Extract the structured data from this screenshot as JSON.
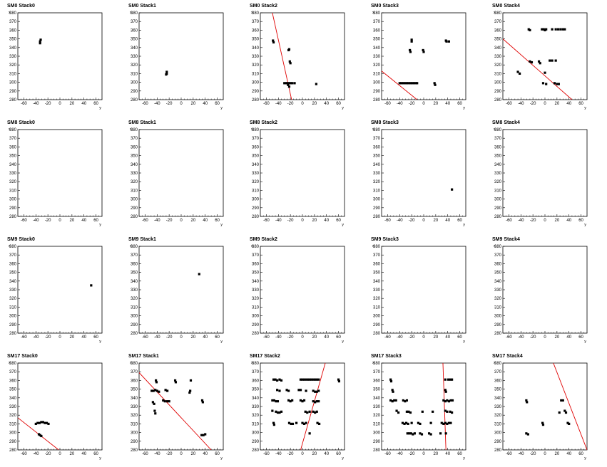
{
  "chart_data": {
    "type": "scatter",
    "xlabel": "y",
    "ylabel": "x",
    "xlim": [
      -70,
      70
    ],
    "ylim": [
      280,
      380
    ],
    "xticks": [
      -60,
      -40,
      -20,
      0,
      20,
      40,
      60
    ],
    "yticks": [
      280,
      290,
      300,
      310,
      320,
      330,
      340,
      350,
      360,
      370,
      380
    ],
    "xtick_labels": [
      "-60",
      "-40",
      "-20",
      "0",
      "20",
      "40",
      "60"
    ],
    "ytick_labels": [
      "280",
      "290",
      "300",
      "310",
      "320",
      "330",
      "340",
      "350",
      "360",
      "370",
      "380"
    ],
    "grid": false,
    "marker_color": "#000000",
    "fit_line_color": "#e00000",
    "panels": [
      {
        "title": "SM0 Stack0",
        "points": [
          [
            -33,
            345
          ],
          [
            -33,
            347
          ],
          [
            -32,
            349
          ]
        ],
        "line": null
      },
      {
        "title": "SM0 Stack1",
        "points": [
          [
            -25,
            309
          ],
          [
            -24,
            310
          ],
          [
            -24,
            312
          ]
        ],
        "line": null
      },
      {
        "title": "SM0 Stack2",
        "points": [
          [
            -49,
            348
          ],
          [
            -48,
            346
          ],
          [
            -23,
            337
          ],
          [
            -22,
            338
          ],
          [
            -21,
            324
          ],
          [
            -20,
            322
          ],
          [
            -30,
            299
          ],
          [
            -27,
            299
          ],
          [
            -25,
            299
          ],
          [
            -24,
            297
          ],
          [
            -22,
            299
          ],
          [
            -20,
            299
          ],
          [
            -17,
            299
          ],
          [
            -13,
            299
          ],
          [
            -22,
            295
          ],
          [
            23,
            298
          ]
        ],
        "line": [
          [
            -50,
            380
          ],
          [
            -18,
            280
          ]
        ]
      },
      {
        "title": "SM0 Stack3",
        "points": [
          [
            -20,
            349
          ],
          [
            -20,
            347
          ],
          [
            -23,
            337
          ],
          [
            -22,
            335
          ],
          [
            -1,
            337
          ],
          [
            0,
            335
          ],
          [
            -40,
            299
          ],
          [
            -37,
            299
          ],
          [
            -34,
            299
          ],
          [
            -31,
            299
          ],
          [
            -28,
            299
          ],
          [
            -25,
            299
          ],
          [
            -22,
            299
          ],
          [
            -19,
            299
          ],
          [
            -16,
            299
          ],
          [
            -13,
            299
          ],
          [
            -11,
            299
          ],
          [
            18,
            299
          ],
          [
            19,
            297
          ],
          [
            37,
            348
          ],
          [
            38,
            347
          ],
          [
            42,
            347
          ]
        ],
        "line": [
          [
            -70,
            313
          ],
          [
            -11,
            280
          ]
        ]
      },
      {
        "title": "SM0 Stack4",
        "points": [
          [
            -27,
            361
          ],
          [
            -25,
            360
          ],
          [
            -5,
            361
          ],
          [
            -2,
            361
          ],
          [
            0,
            360
          ],
          [
            2,
            361
          ],
          [
            12,
            361
          ],
          [
            18,
            361
          ],
          [
            22,
            361
          ],
          [
            26,
            361
          ],
          [
            30,
            361
          ],
          [
            33,
            361
          ],
          [
            -45,
            312
          ],
          [
            -42,
            310
          ],
          [
            -25,
            324
          ],
          [
            -22,
            323
          ],
          [
            -10,
            324
          ],
          [
            -8,
            322
          ],
          [
            8,
            325
          ],
          [
            12,
            325
          ],
          [
            18,
            325
          ],
          [
            0,
            311
          ],
          [
            -3,
            299
          ],
          [
            2,
            298
          ],
          [
            16,
            299
          ],
          [
            20,
            298
          ],
          [
            23,
            298
          ]
        ],
        "line": [
          [
            -70,
            350
          ],
          [
            45,
            280
          ]
        ]
      },
      {
        "title": "SM8 Stack0",
        "points": [],
        "line": null
      },
      {
        "title": "SM8 Stack1",
        "points": [],
        "line": null
      },
      {
        "title": "SM8 Stack2",
        "points": [],
        "line": null
      },
      {
        "title": "SM8 Stack3",
        "points": [
          [
            47,
            311
          ]
        ],
        "line": null
      },
      {
        "title": "SM8 Stack4",
        "points": [],
        "line": null
      },
      {
        "title": "SM9 Stack0",
        "points": [
          [
            52,
            335
          ]
        ],
        "line": null
      },
      {
        "title": "SM9 Stack1",
        "points": [
          [
            30,
            348
          ]
        ],
        "line": null
      },
      {
        "title": "SM9 Stack2",
        "points": [],
        "line": null
      },
      {
        "title": "SM9 Stack3",
        "points": [],
        "line": null
      },
      {
        "title": "SM9 Stack4",
        "points": [],
        "line": null
      },
      {
        "title": "SM17 Stack0",
        "points": [
          [
            -40,
            310
          ],
          [
            -37,
            311
          ],
          [
            -34,
            311
          ],
          [
            -31,
            312
          ],
          [
            -28,
            312
          ],
          [
            -25,
            311
          ],
          [
            -22,
            311
          ],
          [
            -19,
            310
          ],
          [
            -35,
            298
          ],
          [
            -33,
            297
          ],
          [
            -31,
            296
          ]
        ],
        "line": [
          [
            -70,
            317
          ],
          [
            -2,
            280
          ]
        ]
      },
      {
        "title": "SM17 Stack1",
        "points": [
          [
            -42,
            360
          ],
          [
            -41,
            358
          ],
          [
            -49,
            348
          ],
          [
            -46,
            348
          ],
          [
            -43,
            349
          ],
          [
            -40,
            348
          ],
          [
            -37,
            347
          ],
          [
            -26,
            349
          ],
          [
            -23,
            348
          ],
          [
            -30,
            337
          ],
          [
            -27,
            336
          ],
          [
            -23,
            336
          ],
          [
            -20,
            336
          ],
          [
            -47,
            335
          ],
          [
            -45,
            333
          ],
          [
            -44,
            325
          ],
          [
            -43,
            322
          ],
          [
            -10,
            360
          ],
          [
            -9,
            358
          ],
          [
            16,
            360
          ],
          [
            15,
            348
          ],
          [
            14,
            346
          ],
          [
            35,
            337
          ],
          [
            36,
            335
          ],
          [
            34,
            297
          ],
          [
            37,
            297
          ],
          [
            40,
            298
          ]
        ],
        "line": [
          [
            -70,
            369
          ],
          [
            50,
            280
          ]
        ]
      },
      {
        "title": "SM17 Stack2",
        "points": [
          [
            -48,
            361
          ],
          [
            -45,
            361
          ],
          [
            -42,
            360
          ],
          [
            -38,
            361
          ],
          [
            -35,
            360
          ],
          [
            -3,
            361
          ],
          [
            0,
            361
          ],
          [
            3,
            361
          ],
          [
            6,
            361
          ],
          [
            9,
            361
          ],
          [
            12,
            361
          ],
          [
            15,
            361
          ],
          [
            18,
            361
          ],
          [
            21,
            361
          ],
          [
            24,
            361
          ],
          [
            27,
            361
          ],
          [
            60,
            361
          ],
          [
            61,
            359
          ],
          [
            -42,
            349
          ],
          [
            -38,
            348
          ],
          [
            -26,
            349
          ],
          [
            -23,
            348
          ],
          [
            -6,
            349
          ],
          [
            -3,
            349
          ],
          [
            6,
            348
          ],
          [
            18,
            348
          ],
          [
            21,
            347
          ],
          [
            24,
            347
          ],
          [
            27,
            348
          ],
          [
            -50,
            337
          ],
          [
            -47,
            337
          ],
          [
            -44,
            336
          ],
          [
            -41,
            336
          ],
          [
            -23,
            337
          ],
          [
            -20,
            336
          ],
          [
            -17,
            337
          ],
          [
            -3,
            337
          ],
          [
            0,
            336
          ],
          [
            3,
            337
          ],
          [
            18,
            336
          ],
          [
            21,
            335
          ],
          [
            24,
            336
          ],
          [
            27,
            336
          ],
          [
            -50,
            325
          ],
          [
            -44,
            324
          ],
          [
            -41,
            323
          ],
          [
            -38,
            323
          ],
          [
            -35,
            324
          ],
          [
            5,
            324
          ],
          [
            8,
            323
          ],
          [
            12,
            324
          ],
          [
            18,
            324
          ],
          [
            21,
            323
          ],
          [
            24,
            324
          ],
          [
            -48,
            311
          ],
          [
            -47,
            309
          ],
          [
            -22,
            311
          ],
          [
            -19,
            310
          ],
          [
            -16,
            310
          ],
          [
            -10,
            311
          ],
          [
            0,
            311
          ],
          [
            3,
            310
          ],
          [
            6,
            311
          ],
          [
            25,
            311
          ],
          [
            28,
            310
          ],
          [
            12,
            299
          ]
        ],
        "line": [
          [
            -3,
            280
          ],
          [
            38,
            380
          ]
        ]
      },
      {
        "title": "SM17 Stack3",
        "points": [
          [
            -55,
            361
          ],
          [
            -54,
            359
          ],
          [
            -52,
            349
          ],
          [
            -51,
            347
          ],
          [
            -55,
            337
          ],
          [
            -52,
            336
          ],
          [
            -49,
            337
          ],
          [
            -46,
            337
          ],
          [
            -34,
            337
          ],
          [
            -31,
            336
          ],
          [
            -28,
            337
          ],
          [
            -45,
            325
          ],
          [
            -42,
            323
          ],
          [
            -28,
            324
          ],
          [
            -25,
            324
          ],
          [
            -22,
            323
          ],
          [
            -2,
            324
          ],
          [
            15,
            324
          ],
          [
            -35,
            311
          ],
          [
            -32,
            310
          ],
          [
            -29,
            311
          ],
          [
            -26,
            310
          ],
          [
            -20,
            311
          ],
          [
            -9,
            311
          ],
          [
            -6,
            310
          ],
          [
            12,
            311
          ],
          [
            -27,
            299
          ],
          [
            -24,
            299
          ],
          [
            -21,
            299
          ],
          [
            -18,
            298
          ],
          [
            -15,
            299
          ],
          [
            -6,
            299
          ],
          [
            -3,
            298
          ],
          [
            9,
            299
          ],
          [
            12,
            298
          ],
          [
            36,
            361
          ],
          [
            41,
            361
          ],
          [
            44,
            361
          ],
          [
            47,
            361
          ],
          [
            36,
            349
          ],
          [
            37,
            347
          ],
          [
            33,
            337
          ],
          [
            36,
            336
          ],
          [
            39,
            337
          ],
          [
            42,
            336
          ],
          [
            45,
            337
          ],
          [
            48,
            337
          ],
          [
            36,
            325
          ],
          [
            39,
            324
          ],
          [
            44,
            324
          ],
          [
            47,
            323
          ],
          [
            30,
            311
          ],
          [
            33,
            310
          ],
          [
            36,
            311
          ],
          [
            39,
            310
          ],
          [
            42,
            311
          ],
          [
            45,
            311
          ],
          [
            28,
            299
          ],
          [
            37,
            299
          ]
        ],
        "line": [
          [
            32,
            380
          ],
          [
            37,
            280
          ]
        ]
      },
      {
        "title": "SM17 Stack4",
        "points": [
          [
            -31,
            337
          ],
          [
            -30,
            335
          ],
          [
            -31,
            299
          ],
          [
            -28,
            298
          ],
          [
            -4,
            311
          ],
          [
            -3,
            309
          ],
          [
            24,
            323
          ],
          [
            27,
            337
          ],
          [
            30,
            337
          ],
          [
            33,
            325
          ],
          [
            35,
            323
          ],
          [
            38,
            311
          ],
          [
            40,
            310
          ]
        ],
        "line": [
          [
            14,
            380
          ],
          [
            70,
            280
          ]
        ]
      }
    ]
  }
}
